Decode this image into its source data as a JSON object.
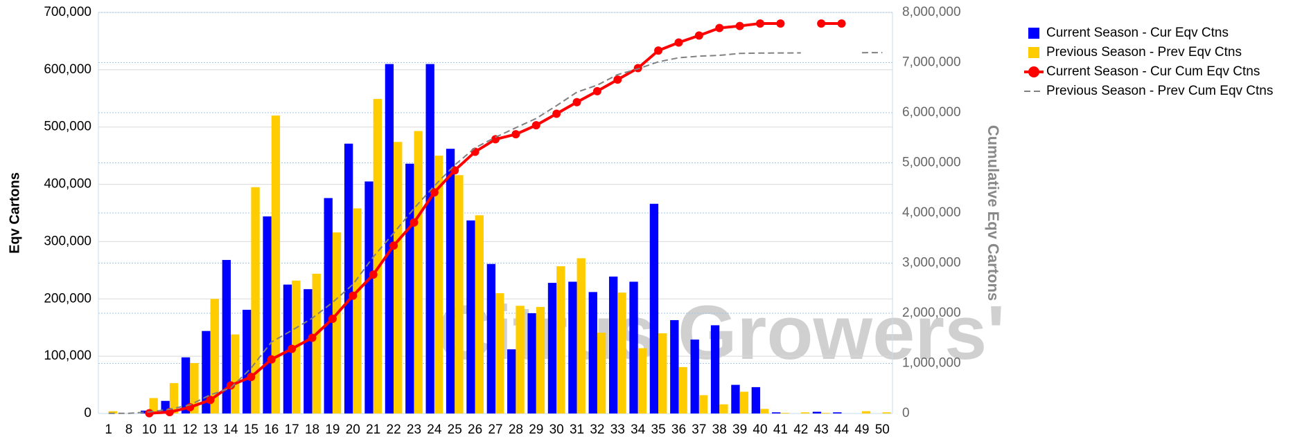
{
  "chart_data": {
    "type": "bar",
    "watermark": "Citrus Growers'",
    "y_label": "Eqv Cartons",
    "y2_label": "Cumulative Eqv Cartons",
    "categories": [
      "1",
      "8",
      "10",
      "11",
      "12",
      "13",
      "14",
      "15",
      "16",
      "17",
      "18",
      "19",
      "20",
      "21",
      "22",
      "23",
      "24",
      "25",
      "26",
      "27",
      "28",
      "29",
      "30",
      "31",
      "32",
      "33",
      "34",
      "35",
      "36",
      "37",
      "38",
      "39",
      "40",
      "41",
      "42",
      "43",
      "44",
      "49",
      "50"
    ],
    "series": [
      {
        "name": "Current Season - Cur Eqv Ctns",
        "type": "bar",
        "color": "#0000ff",
        "values": [
          0,
          0,
          5000,
          22000,
          98000,
          144000,
          268000,
          181000,
          344000,
          225000,
          217000,
          376000,
          471000,
          405000,
          610000,
          436000,
          610000,
          462000,
          337000,
          261000,
          112000,
          175000,
          228000,
          230000,
          212000,
          239000,
          230000,
          366000,
          163000,
          129000,
          154000,
          50000,
          46000,
          2000,
          0,
          3000,
          2000,
          0,
          0
        ]
      },
      {
        "name": "Previous Season - Prev Eqv Ctns",
        "type": "bar",
        "color": "#ffcc00",
        "values": [
          4000,
          0,
          27000,
          53000,
          88000,
          200000,
          138000,
          395000,
          520000,
          232000,
          244000,
          316000,
          358000,
          549000,
          474000,
          493000,
          450000,
          416000,
          346000,
          210000,
          188000,
          186000,
          257000,
          271000,
          141000,
          211000,
          114000,
          140000,
          81000,
          32000,
          16000,
          38000,
          8000,
          1000,
          2000,
          1000,
          0,
          4000,
          2000
        ]
      },
      {
        "name": "Current Season - Cur Cum Eqv Ctns",
        "type": "line",
        "axis": "y2",
        "color": "#ff0000",
        "markers": true,
        "values": [
          null,
          null,
          5000,
          27000,
          125000,
          270000,
          560000,
          730000,
          1080000,
          1290000,
          1510000,
          1890000,
          2350000,
          2770000,
          3350000,
          3810000,
          4410000,
          4850000,
          5220000,
          5470000,
          5570000,
          5750000,
          5980000,
          6210000,
          6430000,
          6660000,
          6890000,
          7240000,
          7400000,
          7540000,
          7690000,
          7730000,
          7780000,
          7780000,
          null,
          7780000,
          7780000,
          null,
          null
        ]
      },
      {
        "name": "Previous Season - Prev Cum Eqv Ctns",
        "type": "line",
        "axis": "y2",
        "color": "#808080",
        "dashed": true,
        "values": [
          4000,
          4000,
          31000,
          84000,
          172000,
          372000,
          510000,
          905000,
          1425000,
          1657000,
          1900000,
          2216000,
          2574000,
          3123000,
          3597000,
          4090000,
          4540000,
          4956000,
          5300000,
          5510000,
          5700000,
          5885000,
          6140000,
          6410000,
          6550000,
          6760000,
          6875000,
          7015000,
          7096000,
          7128000,
          7144000,
          7182000,
          7190000,
          7191000,
          7193000,
          null,
          null,
          7197000,
          7199000
        ]
      }
    ],
    "ylim": [
      0,
      700000
    ],
    "yticks": [
      0,
      {
        "value": 100000,
        "label": "100,000"
      },
      {
        "value": 200000,
        "label": "200,000"
      },
      {
        "value": 300000,
        "label": "300,000"
      },
      {
        "value": 400000,
        "label": "400,000"
      },
      {
        "value": 500000,
        "label": "500,000"
      },
      {
        "value": 600000,
        "label": "600,000"
      },
      {
        "value": 700000,
        "label": "700,000"
      }
    ],
    "y2lim": [
      0,
      8000000
    ],
    "y2ticks": [
      0,
      {
        "value": 1000000,
        "label": "1,000,000"
      },
      {
        "value": 2000000,
        "label": "2,000,000"
      },
      {
        "value": 3000000,
        "label": "3,000,000"
      },
      {
        "value": 4000000,
        "label": "4,000,000"
      },
      {
        "value": 5000000,
        "label": "5,000,000"
      },
      {
        "value": 6000000,
        "label": "6,000,000"
      },
      {
        "value": 7000000,
        "label": "7,000,000"
      },
      {
        "value": 8000000,
        "label": "8,000,000"
      }
    ],
    "grid": true,
    "legend": "right"
  }
}
